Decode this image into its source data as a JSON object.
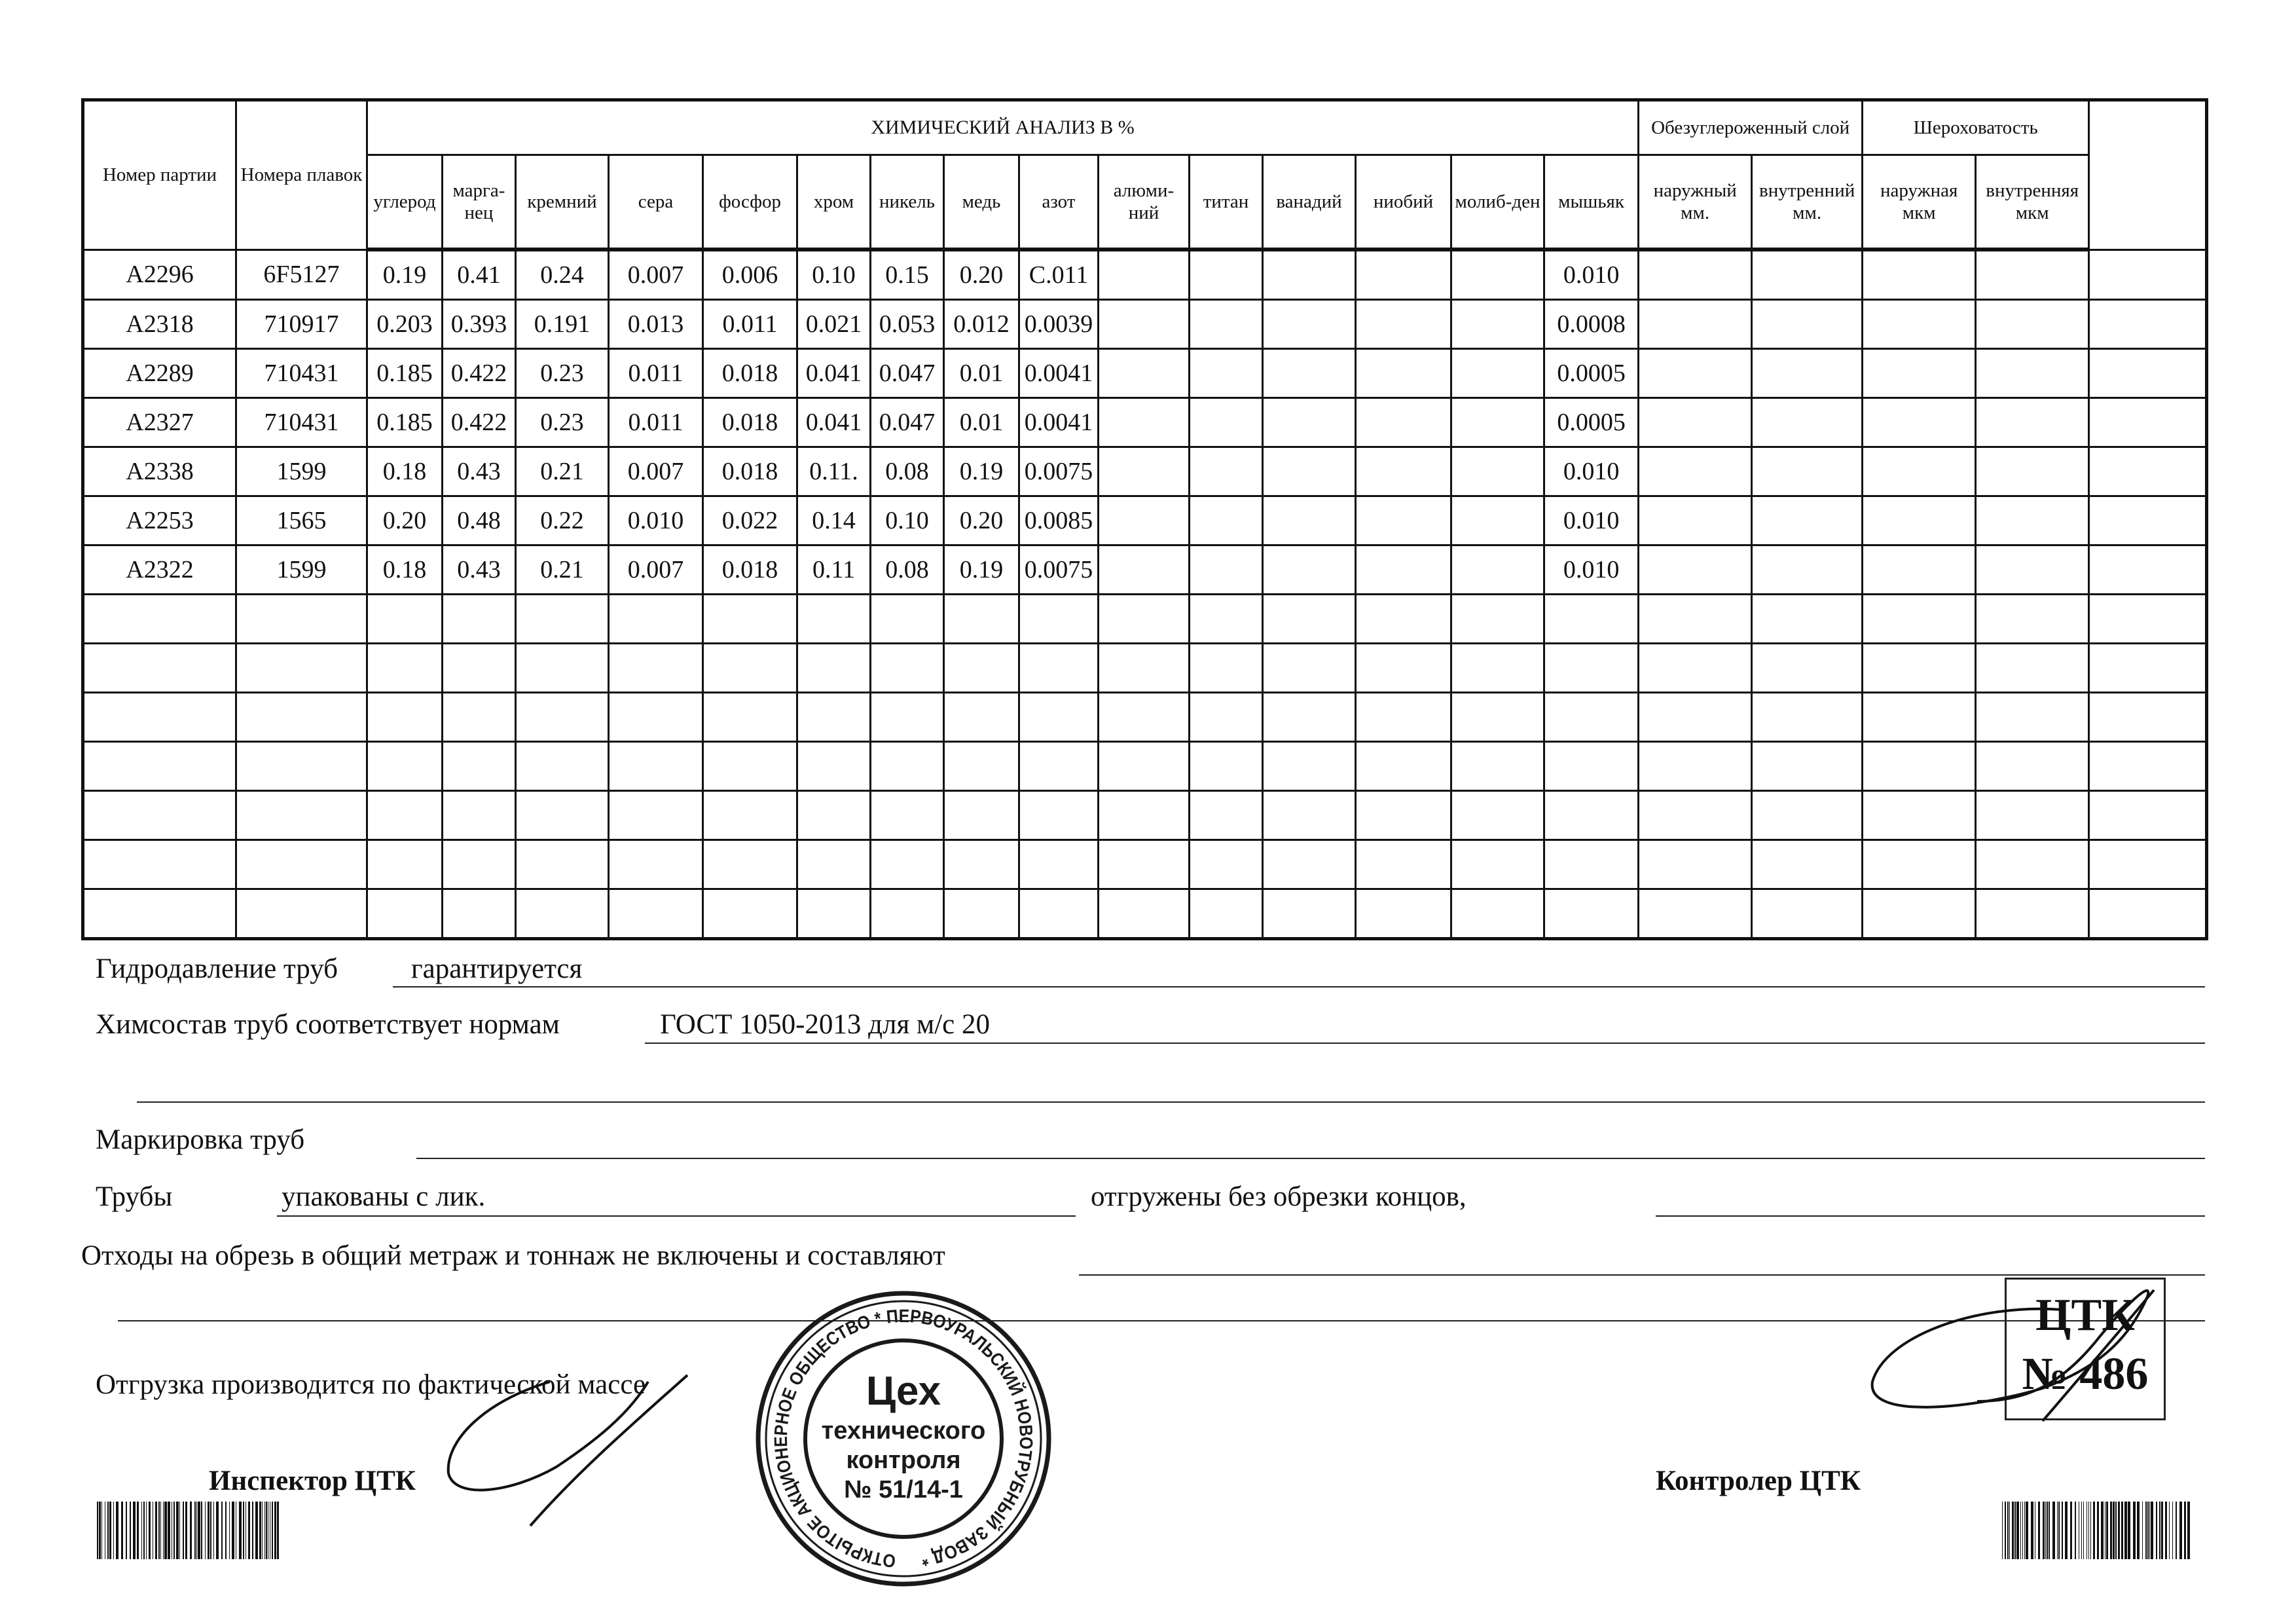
{
  "table": {
    "header": {
      "party": "Номер партии",
      "melts": "Номера плавок",
      "chem_title": "ХИМИЧЕСКИЙ АНАЛИЗ  В   %",
      "decarb_title": "Обезуглероженный слой",
      "rough_title": "Шероховатость",
      "chem": [
        "углерод",
        "марга-нец",
        "кремний",
        "сера",
        "фосфор",
        "хром",
        "никель",
        "медь",
        "азот",
        "алюми-ний",
        "титан",
        "ванадий",
        "ниобий",
        "молиб-ден",
        "мышьяк"
      ],
      "decarb": [
        "наружный мм.",
        "внутренний мм."
      ],
      "rough": [
        "наружная мкм",
        "внутренняя мкм"
      ]
    },
    "rows": [
      {
        "party": "A2296",
        "melt": "6F5127",
        "chem": [
          "0.19",
          "0.41",
          "0.24",
          "0.007",
          "0.006",
          "0.10",
          "0.15",
          "0.20",
          "C.011",
          "",
          "",
          "",
          "",
          "",
          "0.010"
        ]
      },
      {
        "party": "A2318",
        "melt": "710917",
        "chem": [
          "0.203",
          "0.393",
          "0.191",
          "0.013",
          "0.011",
          "0.021",
          "0.053",
          "0.012",
          "0.0039",
          "",
          "",
          "",
          "",
          "",
          "0.0008"
        ]
      },
      {
        "party": "A2289",
        "melt": "710431",
        "chem": [
          "0.185",
          "0.422",
          "0.23",
          "0.011",
          "0.018",
          "0.041",
          "0.047",
          "0.01",
          "0.0041",
          "",
          "",
          "",
          "",
          "",
          "0.0005"
        ]
      },
      {
        "party": "A2327",
        "melt": "710431",
        "chem": [
          "0.185",
          "0.422",
          "0.23",
          "0.011",
          "0.018",
          "0.041",
          "0.047",
          "0.01",
          "0.0041",
          "",
          "",
          "",
          "",
          "",
          "0.0005"
        ]
      },
      {
        "party": "A2338",
        "melt": "1599",
        "chem": [
          "0.18",
          "0.43",
          "0.21",
          "0.007",
          "0.018",
          "0.11.",
          "0.08",
          "0.19",
          "0.0075",
          "",
          "",
          "",
          "",
          "",
          "0.010"
        ]
      },
      {
        "party": "A2253",
        "melt": "1565",
        "chem": [
          "0.20",
          "0.48",
          "0.22",
          "0.010",
          "0.022",
          "0.14",
          "0.10",
          "0.20",
          "0.0085",
          "",
          "",
          "",
          "",
          "",
          "0.010"
        ]
      },
      {
        "party": "A2322",
        "melt": "1599",
        "chem": [
          "0.18",
          "0.43",
          "0.21",
          "0.007",
          "0.018",
          "0.11",
          "0.08",
          "0.19",
          "0.0075",
          "",
          "",
          "",
          "",
          "",
          "0.010"
        ]
      }
    ]
  },
  "form": {
    "hydro_label": "Гидродавление труб",
    "hydro_value": "гарантируется",
    "chem_label": "Химсостав труб соответствует нормам",
    "chem_value": "ГОСТ 1050-2013 для м/с 20",
    "marking_label": "Маркировка труб",
    "pipes_label": "Трубы",
    "pipes_value": "упакованы с лик.",
    "shipped_label": "отгружены без обрезки концов,",
    "waste_label": "Отходы на обрезь в общий метраж и тоннаж не включены и составляют",
    "shipping_label": "Отгрузка производится по фактической массе",
    "inspector_label": "Инспектор ЦТК",
    "controller_label": "Контролер ЦТК"
  },
  "stamp_round": {
    "ring_text": "ОТКРЫТОЕ АКЦИОНЕРНОЕ ОБЩЕСТВО * ПЕРВОУРАЛЬСКИЙ НОВОТРУБНЫЙ ЗАВОД *",
    "line1": "Цех",
    "line2": "технического",
    "line3": "контроля",
    "line4": "№ 51/14-1"
  },
  "stamp_box": {
    "line1": "ЦТК",
    "line2": "№ 486"
  },
  "colors": {
    "ink": "#111111",
    "stamp": "#1a1a1a"
  }
}
